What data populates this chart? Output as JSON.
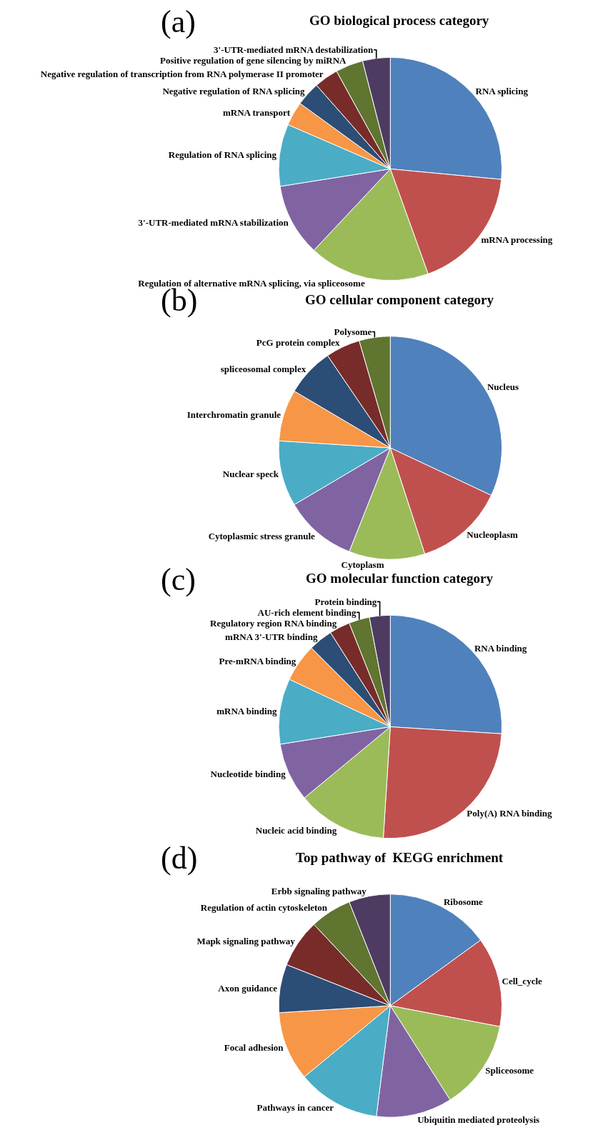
{
  "chart_data": [
    {
      "type": "pie",
      "title": "GO biological process category",
      "annotations": [
        "(a)"
      ],
      "categories": [
        "RNA splicing",
        "mRNA processing",
        "Regulation of alternative mRNA splicing, via spliceosome",
        "3'-UTR-mediated mRNA stabilization",
        "Regulation of RNA splicing",
        "mRNA transport",
        "Negative regulation of RNA splicing",
        "Negative regulation of transcription from RNA polymerase II promoter",
        "Positive regulation of gene silencing by miRNA",
        "3'-UTR-mediated mRNA destabilization"
      ],
      "values": [
        26.5,
        18,
        17.5,
        10.5,
        9,
        3.5,
        3.5,
        3.5,
        4,
        4
      ],
      "colors": [
        "#4f81bd",
        "#c0504d",
        "#9bbb59",
        "#8064a2",
        "#4bacc6",
        "#f79646",
        "#2c4d75",
        "#772c2a",
        "#5f7530",
        "#4d3b62"
      ]
    },
    {
      "type": "pie",
      "title": "GO cellular component category",
      "annotations": [
        "(b)"
      ],
      "categories": [
        "Nucleus",
        "Nucleoplasm",
        "Cytoplasm",
        "Cytoplasmic stress granule",
        "Nuclear speck",
        "Interchromatin granule",
        "spliceosomal complex",
        "PcG protein complex",
        "Polysome"
      ],
      "values": [
        32,
        13,
        11,
        10.5,
        9.5,
        7.5,
        7,
        5,
        4.5
      ],
      "colors": [
        "#4f81bd",
        "#c0504d",
        "#9bbb59",
        "#8064a2",
        "#4bacc6",
        "#f79646",
        "#2c4d75",
        "#772c2a",
        "#5f7530"
      ]
    },
    {
      "type": "pie",
      "title": "GO molecular function category",
      "annotations": [
        "(c)"
      ],
      "categories": [
        "RNA binding",
        "Poly(A) RNA binding",
        "Nucleic acid binding",
        "Nucleotide binding",
        "mRNA binding",
        "Pre-mRNA binding",
        "mRNA 3'-UTR binding",
        "Regulatory region RNA binding",
        "AU-rich element binding",
        "Protein binding"
      ],
      "values": [
        26,
        25,
        13,
        8.5,
        9.5,
        5.5,
        3.5,
        3,
        3,
        3
      ],
      "colors": [
        "#4f81bd",
        "#c0504d",
        "#9bbb59",
        "#8064a2",
        "#4bacc6",
        "#f79646",
        "#2c4d75",
        "#772c2a",
        "#5f7530",
        "#4d3b62"
      ]
    },
    {
      "type": "pie",
      "title": "Top pathway of  KEGG enrichment",
      "annotations": [
        "(d)"
      ],
      "categories": [
        "Ribosome",
        "Cell_cycle",
        "Spliceosome",
        "Ubiquitin mediated proteolysis",
        "Pathways in cancer",
        "Focal adhesion",
        "Axon guidance",
        "Mapk signaling pathway",
        "Regulation of actin cytoskeleton",
        "Erbb signaling pathway"
      ],
      "values": [
        15,
        13,
        13,
        11,
        12,
        10,
        7,
        7,
        6,
        6
      ],
      "colors": [
        "#4f81bd",
        "#c0504d",
        "#9bbb59",
        "#8064a2",
        "#4bacc6",
        "#f79646",
        "#2c4d75",
        "#772c2a",
        "#5f7530",
        "#4d3b62"
      ]
    }
  ]
}
